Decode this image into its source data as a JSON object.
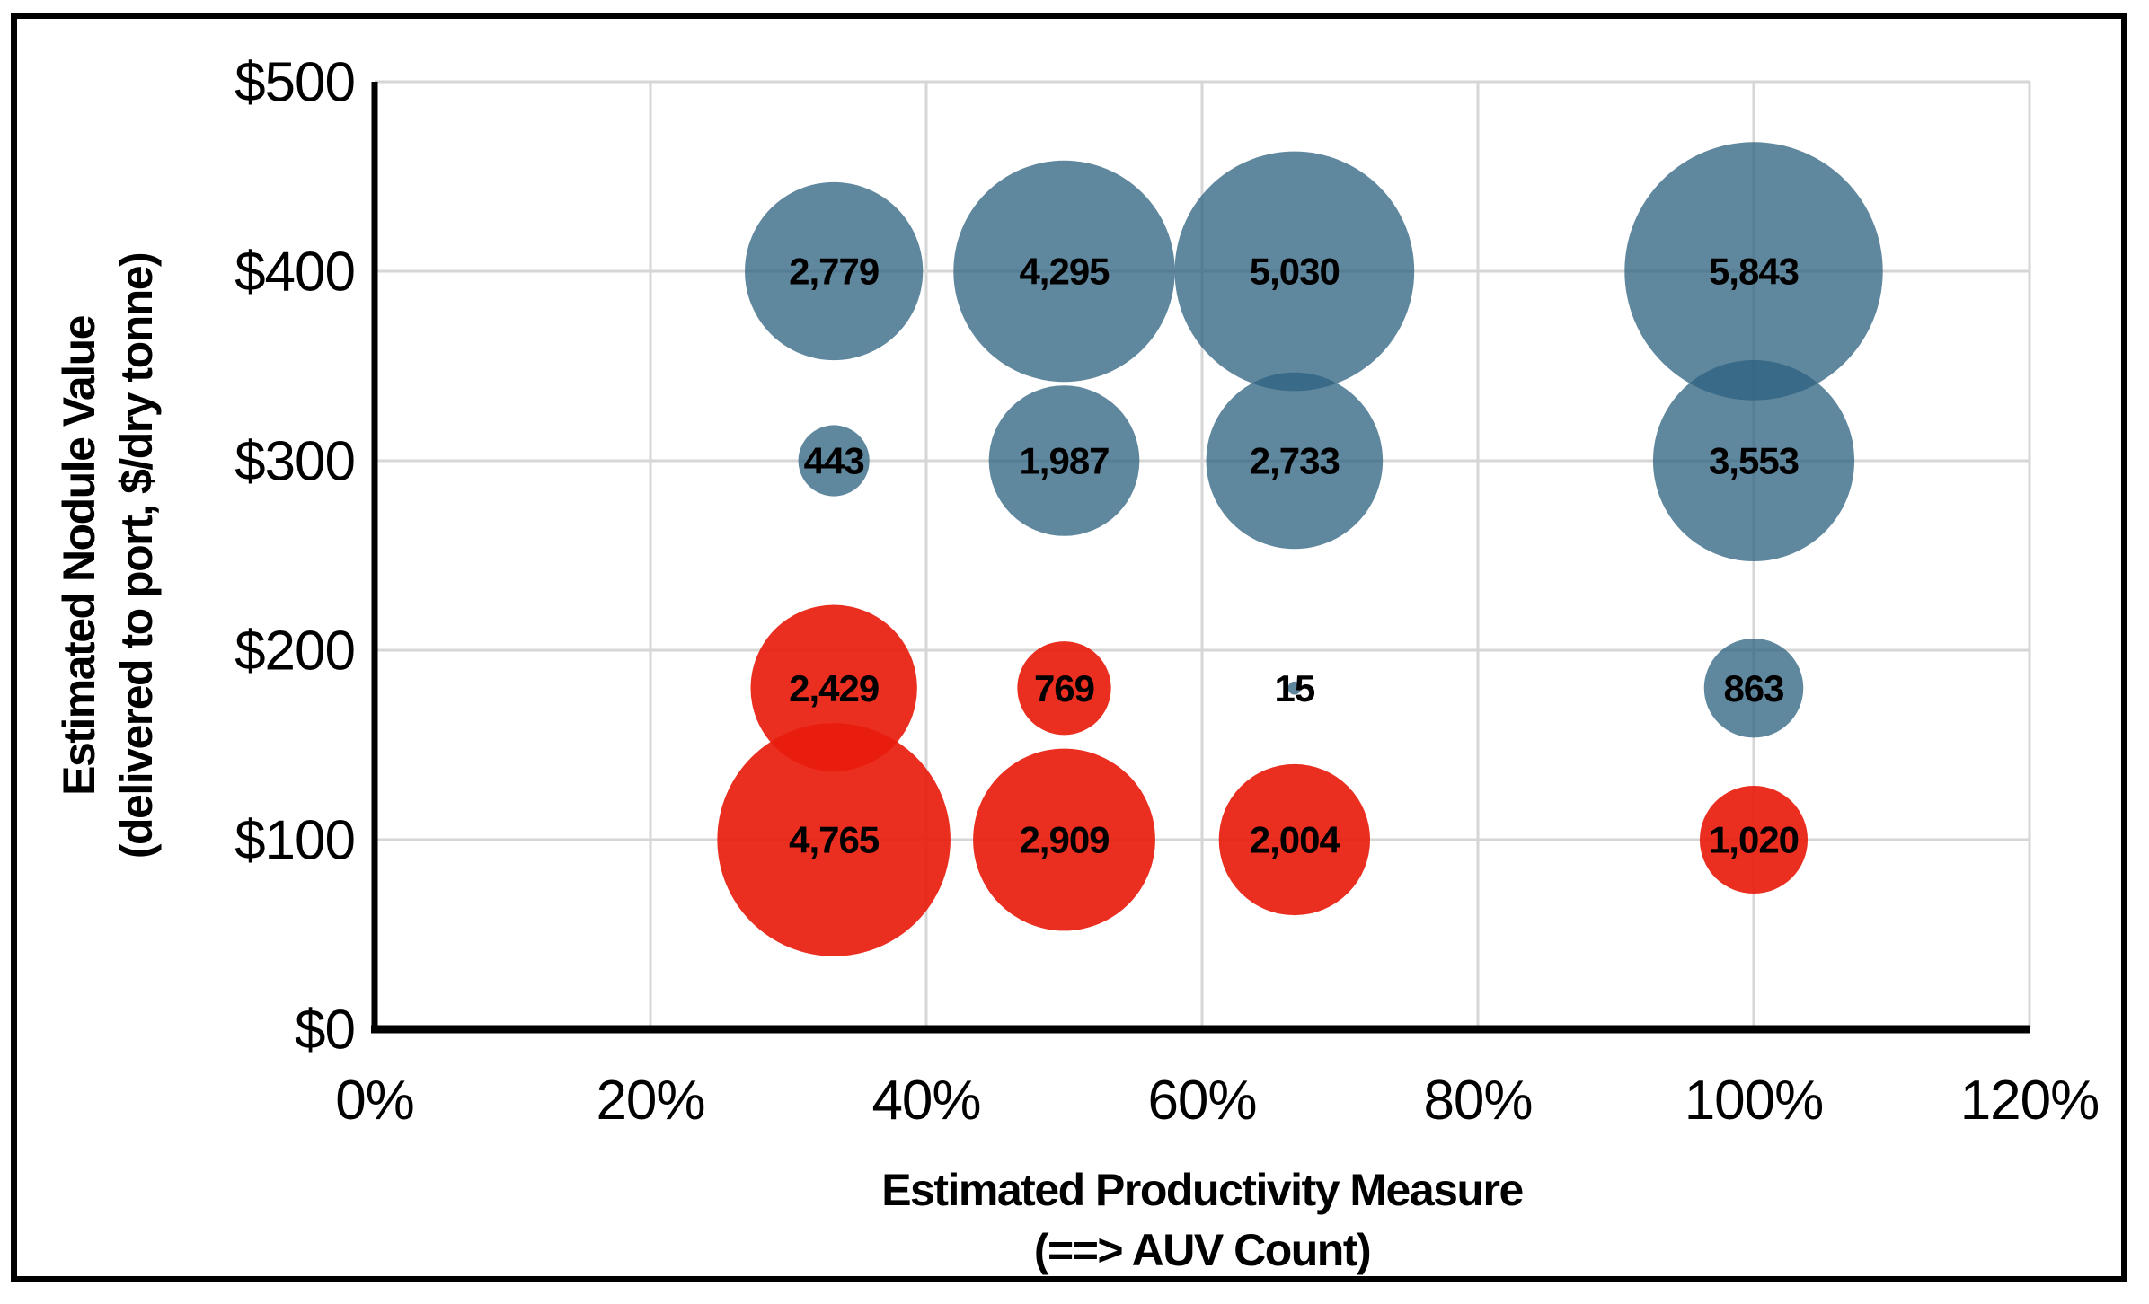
{
  "figure": {
    "background_color": "#ffffff",
    "border_color": "#000000"
  },
  "chart_data": {
    "type": "bubble",
    "title": "",
    "x_axis": {
      "title_line1": "Estimated Productivity Measure",
      "title_line2": "(==> AUV Count)",
      "tick_labels": [
        "0%",
        "20%",
        "40%",
        "60%",
        "80%",
        "100%",
        "120%"
      ],
      "tick_values": [
        0,
        20,
        40,
        60,
        80,
        100,
        120
      ],
      "range": [
        0,
        120
      ],
      "grid": true
    },
    "y_axis": {
      "title_line1": "Estimated Nodule Value",
      "title_line2": "(delivered to port, $/dry tonne)",
      "tick_labels": [
        "$0",
        "$100",
        "$200",
        "$300",
        "$400",
        "$500"
      ],
      "tick_values": [
        0,
        100,
        200,
        300,
        400,
        500
      ],
      "range": [
        0,
        500
      ],
      "grid": true
    },
    "bubble_size_encoding": "area proportional to value",
    "gridline_color": "#d6d6d6",
    "axis_color": "#000000",
    "data_label_color": "#000000",
    "legend": "none",
    "series": [
      {
        "name": "blue-bubbles",
        "fill": "#2d617f",
        "fill_opacity": 0.76,
        "apparent_color": "#5f87a1",
        "points": [
          {
            "x": 33.3,
            "y": 400,
            "value": 2779,
            "label": "2,779"
          },
          {
            "x": 50,
            "y": 400,
            "value": 4295,
            "label": "4,295"
          },
          {
            "x": 66.7,
            "y": 400,
            "value": 5030,
            "label": "5,030"
          },
          {
            "x": 100,
            "y": 400,
            "value": 5843,
            "label": "5,843"
          },
          {
            "x": 33.3,
            "y": 300,
            "value": 443,
            "label": "443"
          },
          {
            "x": 50,
            "y": 300,
            "value": 1987,
            "label": "1,987"
          },
          {
            "x": 66.7,
            "y": 300,
            "value": 2733,
            "label": "2,733"
          },
          {
            "x": 100,
            "y": 300,
            "value": 3553,
            "label": "3,553"
          },
          {
            "x": 66.7,
            "y": 180,
            "value": 15,
            "label": "15"
          },
          {
            "x": 100,
            "y": 180,
            "value": 863,
            "label": "863"
          }
        ]
      },
      {
        "name": "red-bubbles",
        "fill": "#e81c0d",
        "fill_opacity": 0.92,
        "apparent_color": "#e92f26",
        "points": [
          {
            "x": 33.3,
            "y": 180,
            "value": 2429,
            "label": "2,429"
          },
          {
            "x": 50,
            "y": 180,
            "value": 769,
            "label": "769"
          },
          {
            "x": 33.3,
            "y": 100,
            "value": 4765,
            "label": "4,765"
          },
          {
            "x": 50,
            "y": 100,
            "value": 2909,
            "label": "2,909"
          },
          {
            "x": 66.7,
            "y": 100,
            "value": 2004,
            "label": "2,004"
          },
          {
            "x": 100,
            "y": 100,
            "value": 1020,
            "label": "1,020"
          }
        ]
      }
    ]
  }
}
